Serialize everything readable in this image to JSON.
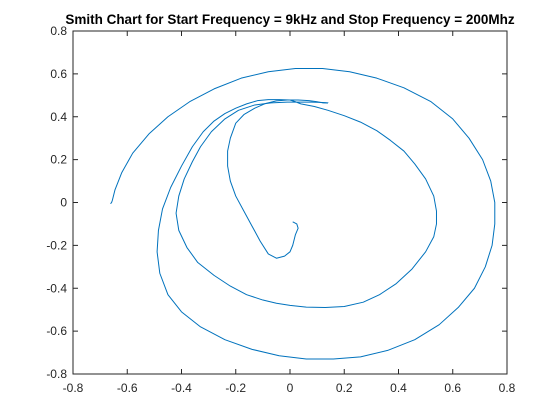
{
  "chart_data": {
    "type": "line",
    "title": "Smith Chart for Start Frequency = 9kHz and Stop Frequency = 200Mhz",
    "xlabel": "",
    "ylabel": "",
    "xlim": [
      -0.8,
      0.8
    ],
    "ylim": [
      -0.8,
      0.8
    ],
    "xticks": [
      -0.8,
      -0.6,
      -0.4,
      -0.2,
      0,
      0.2,
      0.4,
      0.6,
      0.8
    ],
    "yticks": [
      -0.8,
      -0.6,
      -0.4,
      -0.2,
      0,
      0.2,
      0.4,
      0.6,
      0.8
    ],
    "xtick_labels": [
      "-0.8",
      "-0.6",
      "-0.4",
      "-0.2",
      "0",
      "0.2",
      "0.4",
      "0.6",
      "0.8"
    ],
    "ytick_labels": [
      "-0.8",
      "-0.6",
      "-0.4",
      "-0.2",
      "0",
      "0.2",
      "0.4",
      "0.6",
      "0.8"
    ],
    "grid": false,
    "line_color": "#0072BD",
    "series": [
      {
        "x": [
          -0.662,
          -0.658,
          -0.655,
          -0.645,
          -0.62,
          -0.58,
          -0.52,
          -0.45,
          -0.37,
          -0.28,
          -0.18,
          -0.08,
          0.02,
          0.12,
          0.22,
          0.32,
          0.42,
          0.52,
          0.6,
          0.66,
          0.71,
          0.74,
          0.755,
          0.755,
          0.745,
          0.72,
          0.68,
          0.62,
          0.55,
          0.46,
          0.36,
          0.26,
          0.16,
          0.06,
          -0.04,
          -0.14,
          -0.24,
          -0.33,
          -0.4,
          -0.45,
          -0.48,
          -0.49,
          -0.485,
          -0.47,
          -0.44,
          -0.4,
          -0.36,
          -0.32,
          -0.28,
          -0.24,
          -0.2,
          -0.16,
          -0.12,
          -0.08,
          -0.04,
          0.0,
          0.02,
          0.04,
          0.09,
          0.14,
          0.2,
          0.26,
          0.32,
          0.37,
          0.42,
          0.46,
          0.5,
          0.53,
          0.54,
          0.54,
          0.53,
          0.5,
          0.45,
          0.39,
          0.33,
          0.27,
          0.2,
          0.13,
          0.06,
          0.0,
          -0.05,
          -0.1,
          -0.16,
          -0.22,
          -0.28,
          -0.34,
          -0.38,
          -0.41,
          -0.42,
          -0.41,
          -0.39,
          -0.36,
          -0.33,
          -0.29,
          -0.24,
          -0.19,
          -0.13,
          -0.07,
          -0.01,
          0.04,
          0.08,
          0.11,
          0.13,
          0.14,
          0.14
        ],
        "y": [
          -0.005,
          -0.001,
          0.01,
          0.06,
          0.14,
          0.23,
          0.32,
          0.4,
          0.47,
          0.53,
          0.58,
          0.61,
          0.625,
          0.625,
          0.61,
          0.58,
          0.535,
          0.47,
          0.39,
          0.3,
          0.2,
          0.1,
          0.0,
          -0.1,
          -0.2,
          -0.3,
          -0.4,
          -0.49,
          -0.57,
          -0.64,
          -0.69,
          -0.72,
          -0.73,
          -0.73,
          -0.715,
          -0.685,
          -0.64,
          -0.58,
          -0.51,
          -0.43,
          -0.33,
          -0.23,
          -0.13,
          -0.03,
          0.07,
          0.17,
          0.26,
          0.33,
          0.38,
          0.415,
          0.44,
          0.46,
          0.475,
          0.48,
          0.48,
          0.478,
          0.47,
          0.46,
          0.448,
          0.43,
          0.405,
          0.375,
          0.335,
          0.29,
          0.24,
          0.18,
          0.11,
          0.03,
          -0.04,
          -0.1,
          -0.16,
          -0.23,
          -0.31,
          -0.38,
          -0.43,
          -0.465,
          -0.485,
          -0.49,
          -0.488,
          -0.48,
          -0.47,
          -0.455,
          -0.43,
          -0.39,
          -0.34,
          -0.28,
          -0.21,
          -0.13,
          -0.05,
          0.03,
          0.11,
          0.19,
          0.26,
          0.33,
          0.39,
          0.43,
          0.455,
          0.465,
          0.468,
          0.468,
          0.468,
          0.467,
          0.466,
          0.465,
          0.464
        ]
      },
      {
        "x": [
          0.14,
          0.12,
          0.1,
          0.07,
          0.03,
          -0.01,
          -0.05,
          -0.09,
          -0.13,
          -0.17,
          -0.2,
          -0.22,
          -0.23,
          -0.23,
          -0.22,
          -0.2,
          -0.17,
          -0.14,
          -0.11,
          -0.08,
          -0.05,
          -0.02,
          0.0,
          0.01,
          0.02,
          0.03,
          0.025,
          0.01
        ],
        "y": [
          0.464,
          0.465,
          0.47,
          0.475,
          0.478,
          0.478,
          0.474,
          0.462,
          0.44,
          0.41,
          0.37,
          0.3,
          0.24,
          0.17,
          0.1,
          0.03,
          -0.04,
          -0.11,
          -0.18,
          -0.24,
          -0.26,
          -0.25,
          -0.23,
          -0.2,
          -0.15,
          -0.12,
          -0.1,
          -0.09
        ]
      }
    ]
  }
}
